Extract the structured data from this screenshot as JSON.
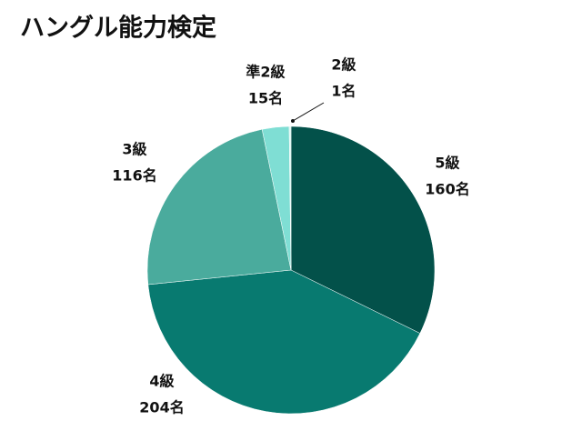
{
  "chart_data": {
    "type": "pie",
    "title": "ハングル能力検定",
    "categories": [
      "5級",
      "4級",
      "3級",
      "準2級",
      "2級"
    ],
    "values": [
      160,
      204,
      116,
      15,
      1
    ],
    "value_labels": [
      "160名",
      "204名",
      "116名",
      "15名",
      "1名"
    ],
    "colors": [
      "#03514a",
      "#087a70",
      "#4aab9d",
      "#7fded4",
      "#d9f5f1"
    ]
  }
}
